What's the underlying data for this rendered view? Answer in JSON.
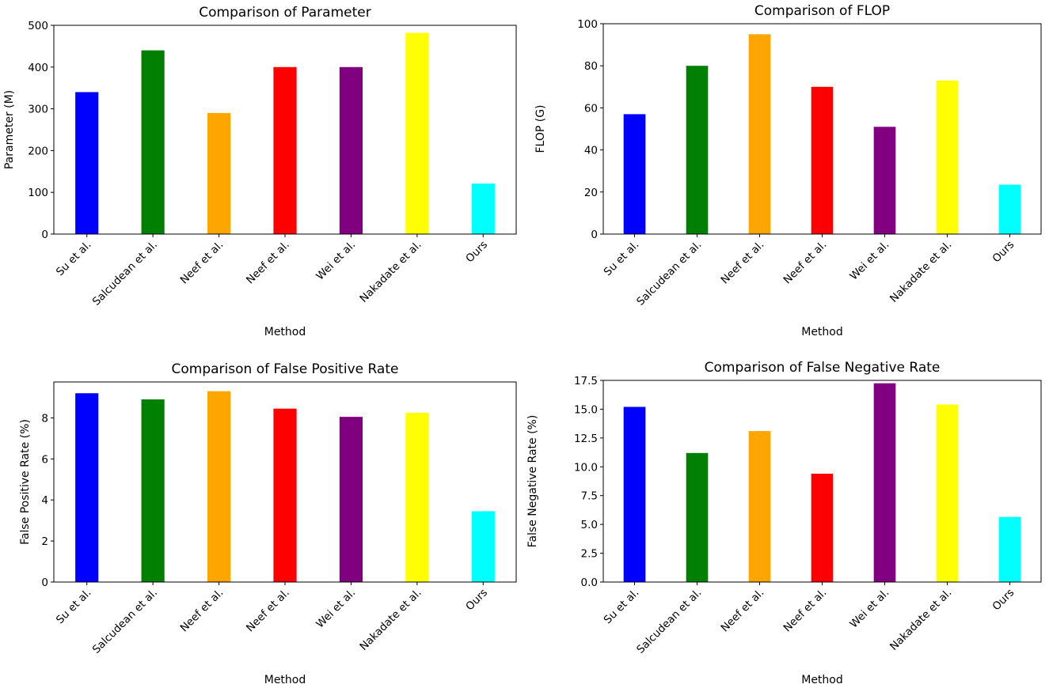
{
  "chart_data": [
    {
      "type": "bar",
      "title": "Comparison of Parameter",
      "xlabel": "Method",
      "ylabel": "Parameter (M)",
      "categories": [
        "Su et al.",
        "Salcudean et al.",
        "Neef et al.",
        "Neef et al.",
        "Wei et al.",
        "Nakadate et al.",
        "Ours"
      ],
      "values": [
        340,
        440,
        290,
        400,
        400,
        482,
        121
      ],
      "colors": [
        "#0000ff",
        "#008000",
        "#ffa500",
        "#ff0000",
        "#800080",
        "#ffff00",
        "#00ffff"
      ],
      "ylim": [
        0,
        500
      ],
      "yticks": [
        0,
        100,
        200,
        300,
        400,
        500
      ],
      "ytick_labels": [
        "0",
        "100",
        "200",
        "300",
        "400",
        "500"
      ],
      "grid": false
    },
    {
      "type": "bar",
      "title": "Comparison of FLOP",
      "xlabel": "Method",
      "ylabel": "FLOP (G)",
      "categories": [
        "Su et al.",
        "Salcudean et al.",
        "Neef et al.",
        "Neef et al.",
        "Wei et al.",
        "Nakadate et al.",
        "Ours"
      ],
      "values": [
        57,
        80,
        95,
        70,
        51,
        73,
        23.5
      ],
      "colors": [
        "#0000ff",
        "#008000",
        "#ffa500",
        "#ff0000",
        "#800080",
        "#ffff00",
        "#00ffff"
      ],
      "ylim": [
        0,
        100
      ],
      "yticks": [
        0,
        20,
        40,
        60,
        80,
        100
      ],
      "ytick_labels": [
        "0",
        "20",
        "40",
        "60",
        "80",
        "100"
      ],
      "grid": false
    },
    {
      "type": "bar",
      "title": "Comparison of False Positive Rate",
      "xlabel": "Method",
      "ylabel": "False Positive Rate (%)",
      "categories": [
        "Su et al.",
        "Salcudean et al.",
        "Neef et al.",
        "Neef et al.",
        "Wei et al.",
        "Nakadate et al.",
        "Ours"
      ],
      "values": [
        9.2,
        8.9,
        9.3,
        8.45,
        8.05,
        8.25,
        3.45
      ],
      "colors": [
        "#0000ff",
        "#008000",
        "#ffa500",
        "#ff0000",
        "#800080",
        "#ffff00",
        "#00ffff"
      ],
      "ylim": [
        0,
        9.75
      ],
      "yticks": [
        0,
        2,
        4,
        6,
        8
      ],
      "ytick_labels": [
        "0",
        "2",
        "4",
        "6",
        "8"
      ],
      "grid": false
    },
    {
      "type": "bar",
      "title": "Comparison of False Negative Rate",
      "xlabel": "Method",
      "ylabel": "False Negative Rate (%)",
      "categories": [
        "Su et al.",
        "Salcudean et al.",
        "Neef et al.",
        "Neef et al.",
        "Wei et al.",
        "Nakadate et al.",
        "Ours"
      ],
      "values": [
        15.2,
        11.2,
        13.1,
        9.4,
        17.25,
        15.4,
        5.65
      ],
      "colors": [
        "#0000ff",
        "#008000",
        "#ffa500",
        "#ff0000",
        "#800080",
        "#ffff00",
        "#00ffff"
      ],
      "ylim": [
        0,
        17.5
      ],
      "yticks": [
        0,
        2.5,
        5,
        7.5,
        10,
        12.5,
        15,
        17.5
      ],
      "ytick_labels": [
        "0.0",
        "2.5",
        "5.0",
        "7.5",
        "10.0",
        "12.5",
        "15.0",
        "17.5"
      ],
      "grid": false
    }
  ]
}
